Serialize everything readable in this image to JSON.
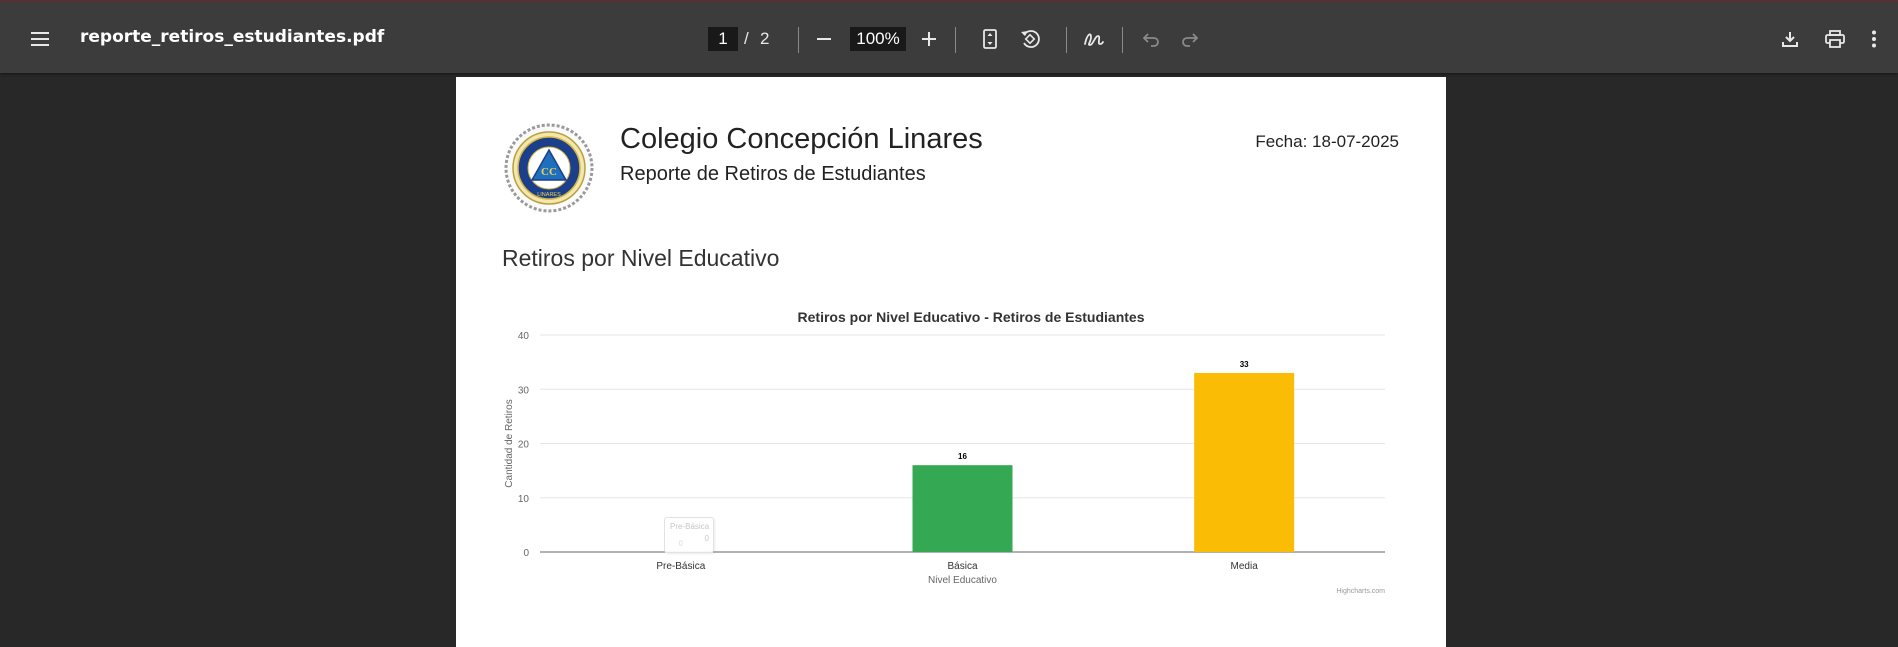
{
  "toolbar": {
    "filename": "reporte_retiros_estudiantes.pdf",
    "current_page": "1",
    "page_separator": "/",
    "total_pages": "2",
    "zoom": "100%",
    "icons": [
      "menu-icon",
      "zoom-out-icon",
      "zoom-in-icon",
      "fit-page-icon",
      "rotate-icon",
      "draw-icon",
      "undo-icon",
      "redo-icon",
      "download-icon",
      "print-icon",
      "more-icon"
    ]
  },
  "document": {
    "school_name": "Colegio Concepción Linares",
    "report_title": "Reporte de Retiros de Estudiantes",
    "date": "Fecha: 18-07-2025",
    "section_title": "Retiros por Nivel Educativo",
    "logo_text": "COLEGIO CONCEPCIÓN LINARES"
  },
  "tooltip": {
    "name": "Pre-Básica",
    "value": "0"
  },
  "chart_data": {
    "type": "bar",
    "title": "Retiros por Nivel Educativo - Retiros de Estudiantes",
    "xlabel": "Nivel Educativo",
    "ylabel": "Cantidad de Retiros",
    "categories": [
      "Pre-Básica",
      "Básica",
      "Media"
    ],
    "values": [
      0,
      16,
      33
    ],
    "colors": [
      "#cccccc",
      "#34a853",
      "#fbbc05"
    ],
    "ylim": [
      0,
      40
    ],
    "yticks": [
      0,
      10,
      20,
      30,
      40
    ],
    "grid": true,
    "legend": "none",
    "credits": "Highcharts.com"
  }
}
